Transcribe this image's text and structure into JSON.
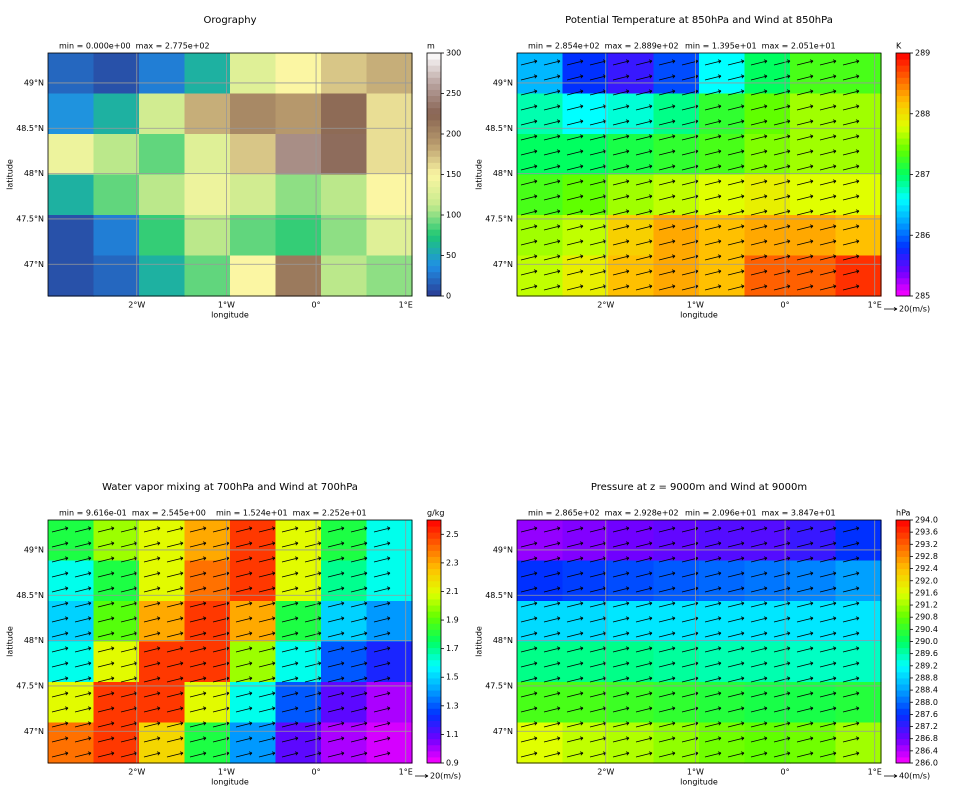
{
  "chart_data": [
    {
      "type": "contour",
      "title": "Orography",
      "annotations": [
        "min = 0.000e+00  max = 2.775e+02"
      ],
      "xlabel": "longitude",
      "ylabel": "latitude",
      "xlim": [
        -2.99,
        1.07
      ],
      "ylim": [
        46.65,
        49.33
      ],
      "xticks": [
        {
          "value": -2,
          "label": "2°W"
        },
        {
          "value": -1,
          "label": "1°W"
        },
        {
          "value": 0,
          "label": "0°"
        },
        {
          "value": 1,
          "label": "1°E"
        }
      ],
      "yticks": [
        {
          "value": 47,
          "label": "47°N"
        },
        {
          "value": 47.5,
          "label": "47.5°N"
        },
        {
          "value": 48,
          "label": "48°N"
        },
        {
          "value": 48.5,
          "label": "48.5°N"
        },
        {
          "value": 49,
          "label": "49°N"
        }
      ],
      "colorbar": {
        "label": "m",
        "lim": [
          0,
          300
        ],
        "ticks": [
          0,
          50,
          100,
          150,
          200,
          250,
          300
        ]
      },
      "colors": [
        "#2b3a93",
        "#1f8fe6",
        "#1ec873",
        "#c6ea8d",
        "#fbf6a3",
        "#b99c6e",
        "#876352",
        "#b9a3a0",
        "#ffffff"
      ],
      "field": [
        [
          20,
          10,
          30,
          60,
          130,
          150,
          170,
          180
        ],
        [
          40,
          60,
          120,
          180,
          200,
          190,
          220,
          160
        ],
        [
          140,
          110,
          90,
          130,
          170,
          250,
          230,
          160
        ],
        [
          60,
          90,
          110,
          140,
          120,
          100,
          110,
          150
        ],
        [
          10,
          30,
          80,
          110,
          90,
          80,
          100,
          130
        ],
        [
          10,
          20,
          60,
          90,
          150,
          210,
          110,
          100
        ]
      ]
    },
    {
      "type": "contour",
      "title": "Potential Temperature at 850hPa and Wind at 850hPa",
      "annotations": [
        "min = 2.854e+02  max = 2.889e+02",
        "min = 1.395e+01  max = 2.051e+01"
      ],
      "xlabel": "longitude",
      "ylabel": "latitude",
      "xlim": [
        -2.99,
        1.07
      ],
      "ylim": [
        46.65,
        49.33
      ],
      "xticks": [
        {
          "value": -2,
          "label": "2°W"
        },
        {
          "value": -1,
          "label": "1°W"
        },
        {
          "value": 0,
          "label": "0°"
        },
        {
          "value": 1,
          "label": "1°E"
        }
      ],
      "yticks": [
        {
          "value": 47,
          "label": "47°N"
        },
        {
          "value": 47.5,
          "label": "47.5°N"
        },
        {
          "value": 48,
          "label": "48°N"
        },
        {
          "value": 48.5,
          "label": "48.5°N"
        },
        {
          "value": 49,
          "label": "49°N"
        }
      ],
      "colorbar": {
        "label": "K",
        "lim": [
          285,
          289
        ],
        "ticks": [
          285,
          286,
          287,
          288,
          289
        ]
      },
      "colors": [
        "#ff00ff",
        "#7000ff",
        "#0030ff",
        "#00a0ff",
        "#00ffff",
        "#00ff60",
        "#60ff00",
        "#e0ff00",
        "#ffc000",
        "#ff6000",
        "#ff0000"
      ],
      "quiver_key": "20(m/s)",
      "field": [
        [
          286.3,
          285.8,
          285.6,
          285.9,
          286.6,
          287.0,
          287.3,
          287.3
        ],
        [
          286.8,
          286.6,
          286.7,
          286.9,
          287.2,
          287.4,
          287.6,
          287.6
        ],
        [
          287.0,
          287.0,
          287.1,
          287.2,
          287.3,
          287.5,
          287.6,
          287.6
        ],
        [
          287.3,
          287.4,
          287.6,
          287.7,
          287.8,
          287.9,
          287.8,
          287.8
        ],
        [
          287.6,
          287.7,
          288.1,
          288.3,
          288.2,
          288.3,
          288.3,
          288.2
        ],
        [
          287.7,
          287.9,
          288.2,
          288.3,
          288.2,
          288.6,
          288.6,
          288.8
        ]
      ]
    },
    {
      "type": "contour",
      "title": "Water vapor mixing at 700hPa and Wind at 700hPa",
      "annotations": [
        "min = 9.616e-01  max = 2.545e+00",
        "min = 1.524e+01  max = 2.252e+01"
      ],
      "xlabel": "longitude",
      "ylabel": "latitude",
      "xlim": [
        -2.99,
        1.07
      ],
      "ylim": [
        46.65,
        49.33
      ],
      "xticks": [
        {
          "value": -2,
          "label": "2°W"
        },
        {
          "value": -1,
          "label": "1°W"
        },
        {
          "value": 0,
          "label": "0°"
        },
        {
          "value": 1,
          "label": "1°E"
        }
      ],
      "yticks": [
        {
          "value": 47,
          "label": "47°N"
        },
        {
          "value": 47.5,
          "label": "47.5°N"
        },
        {
          "value": 48,
          "label": "48°N"
        },
        {
          "value": 48.5,
          "label": "48.5°N"
        },
        {
          "value": 49,
          "label": "49°N"
        }
      ],
      "colorbar": {
        "label": "g/kg",
        "lim": [
          0.9,
          2.6
        ],
        "ticks": [
          0.9,
          1.1,
          1.3,
          1.5,
          1.7,
          1.9,
          2.1,
          2.3,
          2.5
        ]
      },
      "colors": [
        "#ff00ff",
        "#7000ff",
        "#0030ff",
        "#00a0ff",
        "#00ffff",
        "#00ff60",
        "#60ff00",
        "#e0ff00",
        "#ffc000",
        "#ff6000",
        "#ff0000"
      ],
      "quiver_key": "20(m/s)",
      "field": [
        [
          1.8,
          2.0,
          2.1,
          2.3,
          2.5,
          2.1,
          1.8,
          1.6
        ],
        [
          1.6,
          1.8,
          2.1,
          2.4,
          2.5,
          2.1,
          1.7,
          1.6
        ],
        [
          1.5,
          1.9,
          2.3,
          2.5,
          2.3,
          1.8,
          1.5,
          1.4
        ],
        [
          1.6,
          2.1,
          2.5,
          2.5,
          2.0,
          1.6,
          1.3,
          1.2
        ],
        [
          2.1,
          2.5,
          2.5,
          2.1,
          1.6,
          1.3,
          1.1,
          1.0
        ],
        [
          2.4,
          2.5,
          2.2,
          1.8,
          1.4,
          1.1,
          1.0,
          0.95
        ]
      ]
    },
    {
      "type": "contour",
      "title": "Pressure at z = 9000m and Wind at 9000m",
      "annotations": [
        "min = 2.865e+02  max = 2.928e+02",
        "min = 2.096e+01  max = 3.847e+01"
      ],
      "xlabel": "longitude",
      "ylabel": "latitude",
      "xlim": [
        -2.99,
        1.07
      ],
      "ylim": [
        46.65,
        49.33
      ],
      "xticks": [
        {
          "value": -2,
          "label": "2°W"
        },
        {
          "value": -1,
          "label": "1°W"
        },
        {
          "value": 0,
          "label": "0°"
        },
        {
          "value": 1,
          "label": "1°E"
        }
      ],
      "yticks": [
        {
          "value": 47,
          "label": "47°N"
        },
        {
          "value": 47.5,
          "label": "47.5°N"
        },
        {
          "value": 48,
          "label": "48°N"
        },
        {
          "value": 48.5,
          "label": "48.5°N"
        },
        {
          "value": 49,
          "label": "49°N"
        }
      ],
      "colorbar": {
        "label": "hPa",
        "lim": [
          286,
          294
        ],
        "ticks": [
          {
            "value": 286,
            "label": "286.0"
          },
          286.4,
          286.8,
          287.2,
          287.6,
          {
            "value": 288,
            "label": "288.0"
          },
          288.4,
          288.8,
          289.2,
          289.6,
          {
            "value": 290,
            "label": "290.0"
          },
          290.4,
          290.8,
          291.2,
          291.6,
          {
            "value": 292,
            "label": "292.0"
          },
          292.4,
          292.8,
          293.2,
          293.6,
          {
            "value": 294,
            "label": "294.0"
          }
        ]
      },
      "colors": [
        "#ff00ff",
        "#7000ff",
        "#0030ff",
        "#00a0ff",
        "#00ffff",
        "#00ff60",
        "#60ff00",
        "#e0ff00",
        "#ffc000",
        "#ff6000",
        "#ff0000"
      ],
      "quiver_key": "40(m/s)",
      "field": [
        [
          286.6,
          286.7,
          286.8,
          286.9,
          287.0,
          287.0,
          287.2,
          287.6
        ],
        [
          287.6,
          287.7,
          287.8,
          287.9,
          288.0,
          288.1,
          288.2,
          288.4
        ],
        [
          288.9,
          288.9,
          289.0,
          289.0,
          289.0,
          289.0,
          289.0,
          289.0
        ],
        [
          289.8,
          289.8,
          289.8,
          289.7,
          289.6,
          289.6,
          289.5,
          289.5
        ],
        [
          290.6,
          290.6,
          290.5,
          290.4,
          290.3,
          290.2,
          290.2,
          290.3
        ],
        [
          291.6,
          291.4,
          291.3,
          291.1,
          290.9,
          290.8,
          290.9,
          291.2
        ]
      ]
    }
  ]
}
